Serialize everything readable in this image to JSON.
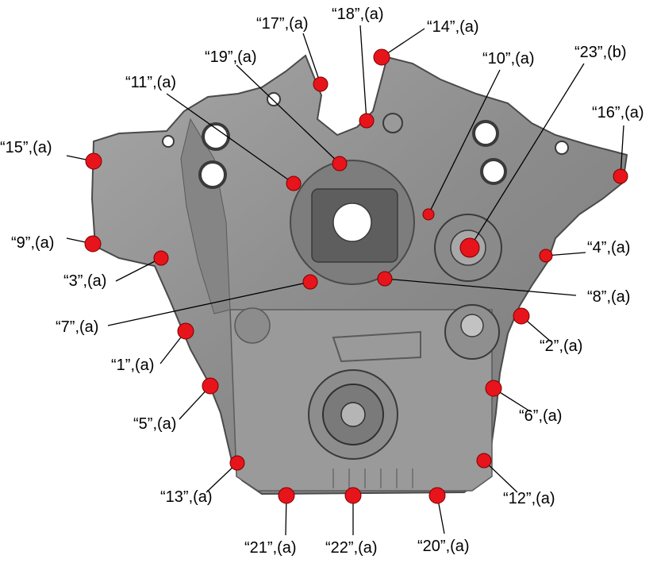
{
  "colors": {
    "housing": "#8a8a8a",
    "housing_dark": "#5c5c5c",
    "housing_light": "#b4b4b4",
    "bolt": "#e8141b",
    "label": "#000000",
    "background": "#ffffff"
  },
  "callouts": [
    {
      "id": "17",
      "text": "“17”,(a)"
    },
    {
      "id": "18",
      "text": "“18”,(a)"
    },
    {
      "id": "14",
      "text": "“14”,(a)"
    },
    {
      "id": "19",
      "text": "“19”,(a)"
    },
    {
      "id": "10",
      "text": "“10”,(a)"
    },
    {
      "id": "23",
      "text": "“23”,(b)"
    },
    {
      "id": "11",
      "text": "“11”,(a)"
    },
    {
      "id": "16",
      "text": "“16”,(a)"
    },
    {
      "id": "15",
      "text": "“15”,(a)"
    },
    {
      "id": "9",
      "text": "“9”,(a)"
    },
    {
      "id": "4",
      "text": "“4”,(a)"
    },
    {
      "id": "3",
      "text": "“3”,(a)"
    },
    {
      "id": "8",
      "text": "“8”,(a)"
    },
    {
      "id": "7",
      "text": "“7”,(a)"
    },
    {
      "id": "2",
      "text": "“2”,(a)"
    },
    {
      "id": "1",
      "text": "“1”,(a)"
    },
    {
      "id": "6",
      "text": "“6”,(a)"
    },
    {
      "id": "5",
      "text": "“5”,(a)"
    },
    {
      "id": "13",
      "text": "“13”,(a)"
    },
    {
      "id": "12",
      "text": "“12”,(a)"
    },
    {
      "id": "21",
      "text": "“21”,(a)"
    },
    {
      "id": "22",
      "text": "“22”,(a)"
    },
    {
      "id": "20",
      "text": "“20”,(a)"
    }
  ]
}
